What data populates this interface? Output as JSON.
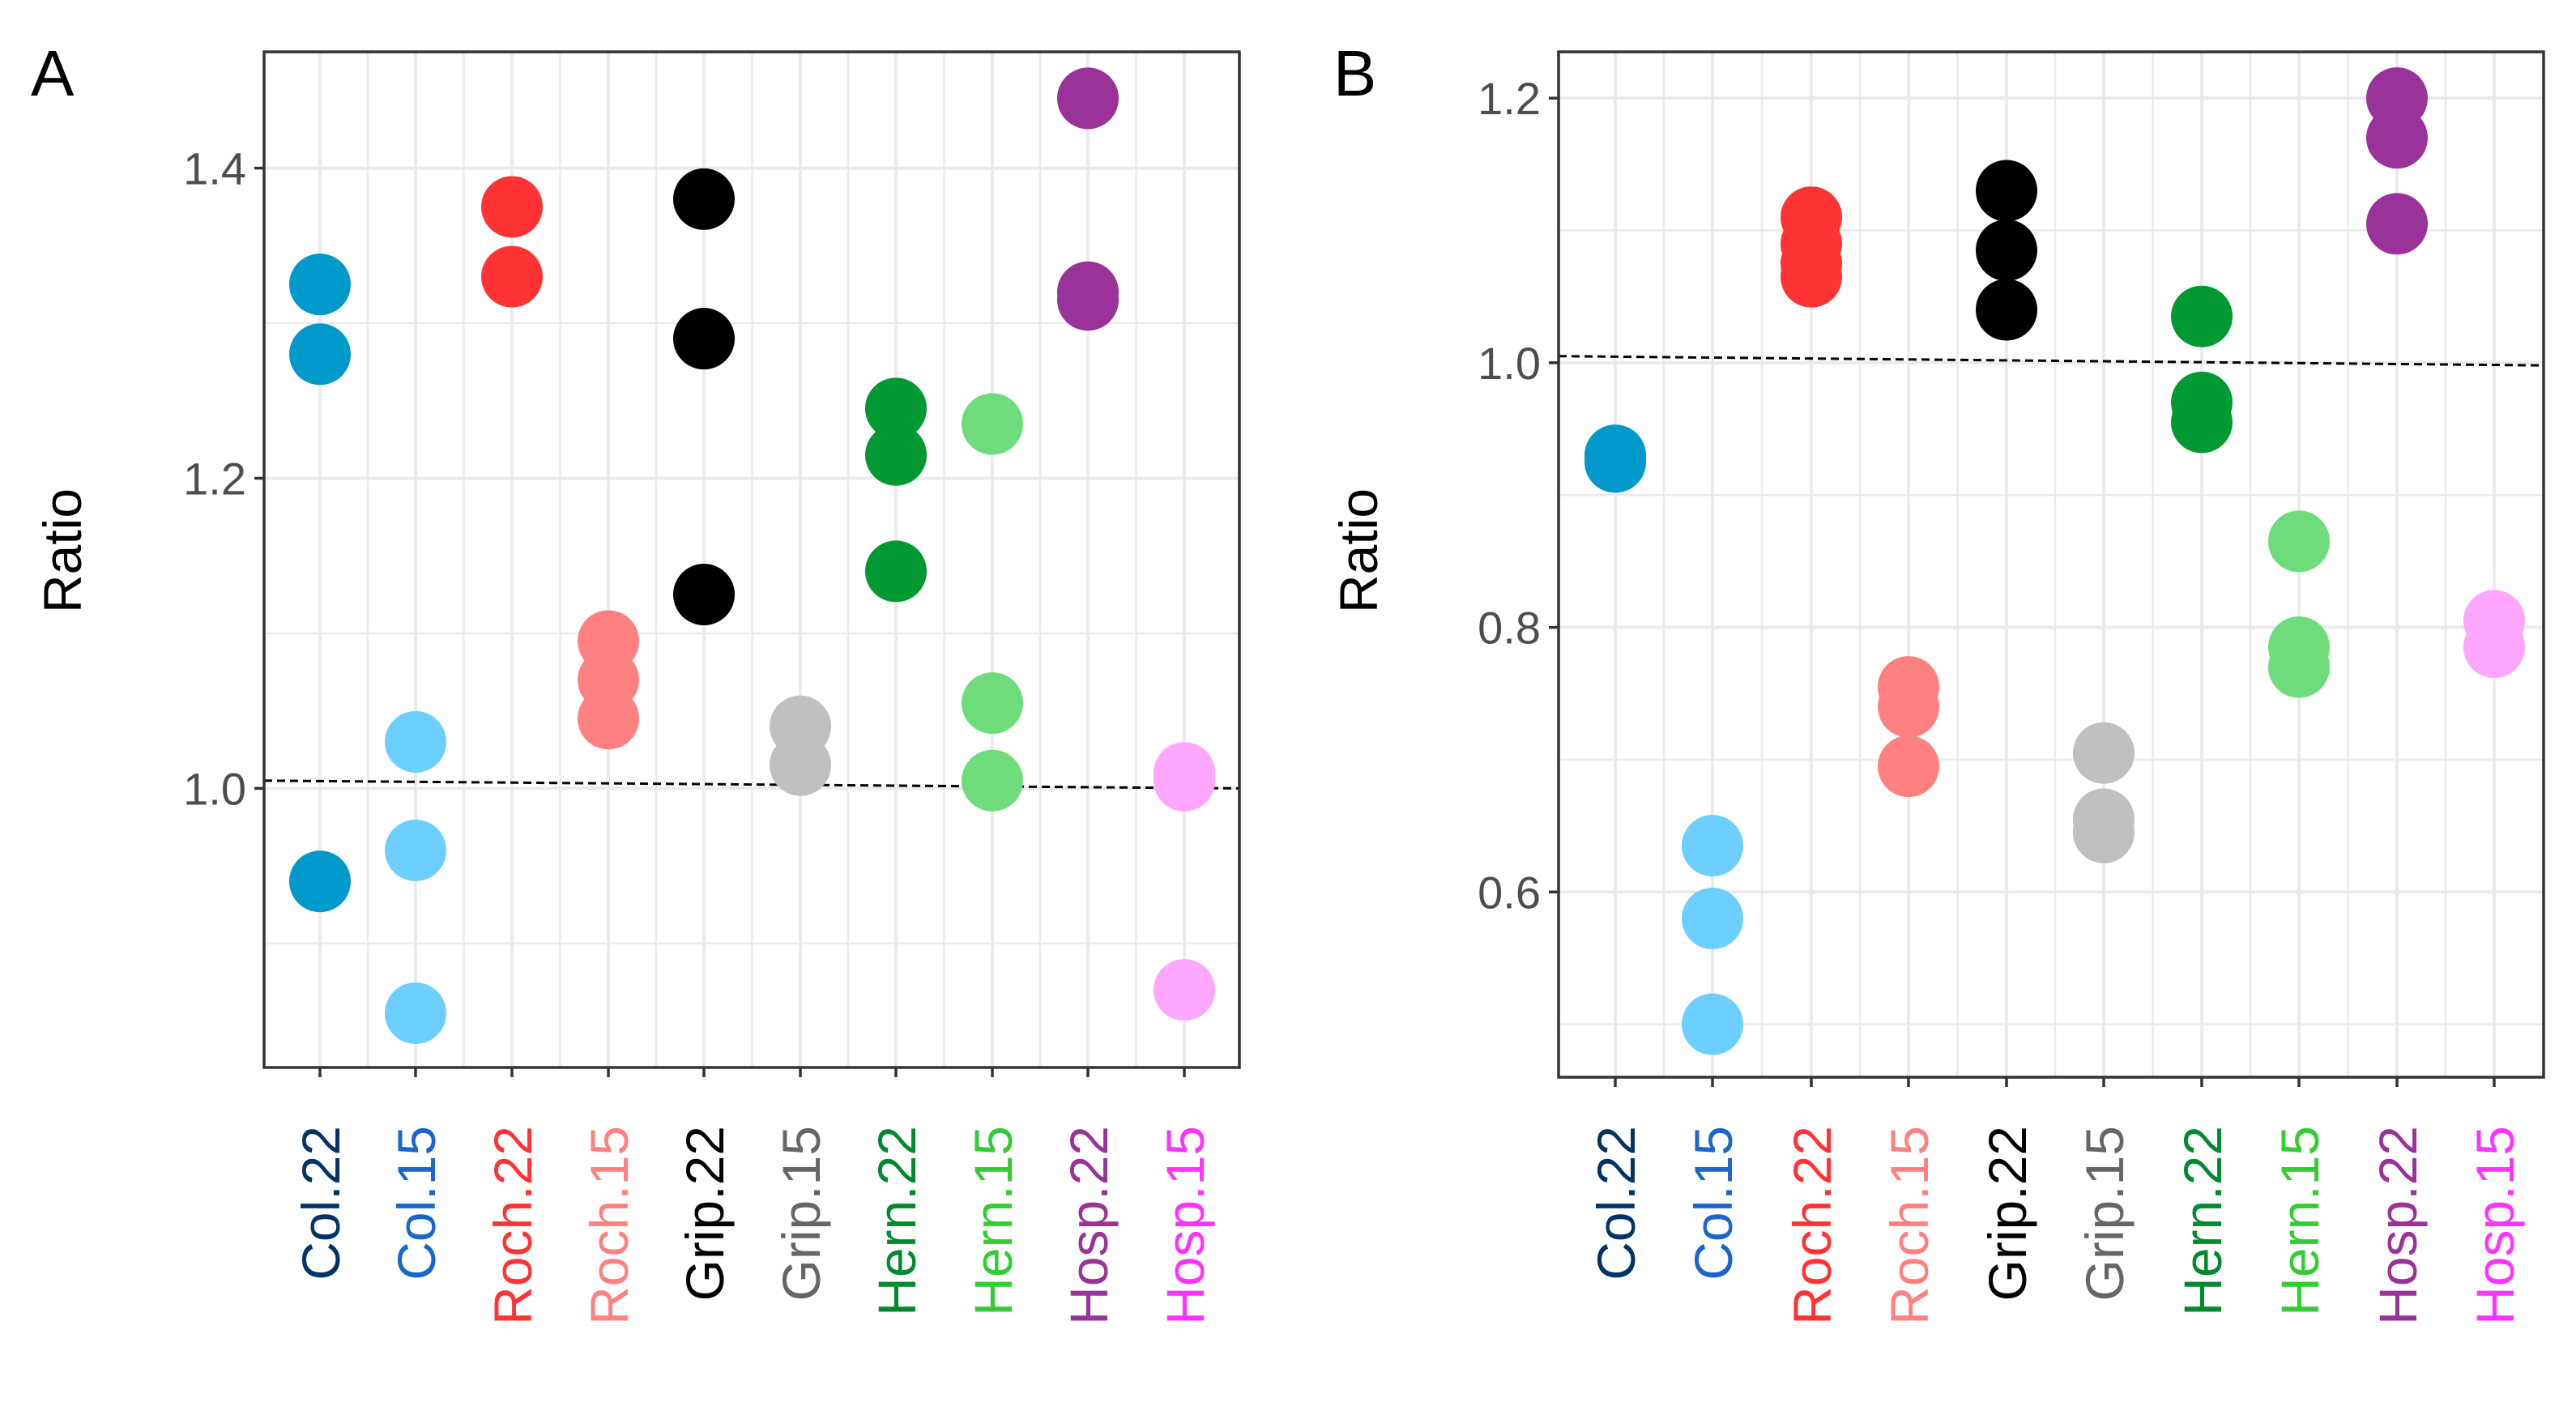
{
  "chart_data": [
    {
      "type": "scatter",
      "panel": "A",
      "title": "",
      "xlabel": "",
      "ylabel": "Ratio",
      "ylim": [
        0.82,
        1.475
      ],
      "yticks": [
        1.0,
        1.2,
        1.4
      ],
      "ytick_labels": [
        "1.0",
        "1.2",
        "1.4"
      ],
      "reference_line": {
        "x0_index": 0,
        "y0": 1.005,
        "x1_index": 9,
        "y1": 1.0
      },
      "categories": [
        {
          "label": "Col.22",
          "label_color": "#003366",
          "point_color": "#0099cc",
          "values": [
            1.325,
            1.28,
            0.94
          ]
        },
        {
          "label": "Col.15",
          "label_color": "#1a66cc",
          "point_color": "#6dcfff",
          "values": [
            1.03,
            0.96,
            0.855
          ]
        },
        {
          "label": "Roch.22",
          "label_color": "#ff3333",
          "point_color": "#ff3333",
          "values": [
            1.375,
            1.33
          ]
        },
        {
          "label": "Roch.15",
          "label_color": "#ff8080",
          "point_color": "#ff8080",
          "values": [
            1.095,
            1.07,
            1.045
          ]
        },
        {
          "label": "Grip.22",
          "label_color": "#000000",
          "point_color": "#000000",
          "values": [
            1.38,
            1.29,
            1.125
          ]
        },
        {
          "label": "Grip.15",
          "label_color": "#666666",
          "point_color": "#c0c0c0",
          "values": [
            1.04,
            1.015
          ]
        },
        {
          "label": "Hern.22",
          "label_color": "#008a2e",
          "point_color": "#009933",
          "values": [
            1.245,
            1.215,
            1.14
          ]
        },
        {
          "label": "Hern.15",
          "label_color": "#33cc33",
          "point_color": "#6fdc7c",
          "values": [
            1.235,
            1.055,
            1.005
          ]
        },
        {
          "label": "Hosp.22",
          "label_color": "#993399",
          "point_color": "#993399",
          "values": [
            1.445,
            1.32,
            1.315
          ]
        },
        {
          "label": "Hosp.15",
          "label_color": "#ff33ff",
          "point_color": "#ffa6ff",
          "values": [
            1.01,
            1.005,
            0.87
          ]
        }
      ]
    },
    {
      "type": "scatter",
      "panel": "B",
      "title": "",
      "xlabel": "",
      "ylabel": "Ratio",
      "ylim": [
        0.46,
        1.235
      ],
      "yticks": [
        0.6,
        0.8,
        1.0,
        1.2
      ],
      "ytick_labels": [
        "0.6",
        "0.8",
        "1.0",
        "1.2"
      ],
      "reference_line": {
        "x0_index": 0,
        "y0": 1.005,
        "x1_index": 9,
        "y1": 0.998
      },
      "categories": [
        {
          "label": "Col.22",
          "label_color": "#003366",
          "point_color": "#0099cc",
          "values": [
            0.93,
            0.925
          ]
        },
        {
          "label": "Col.15",
          "label_color": "#1a66cc",
          "point_color": "#6dcfff",
          "values": [
            0.635,
            0.58,
            0.5
          ]
        },
        {
          "label": "Roch.22",
          "label_color": "#ff3333",
          "point_color": "#ff3333",
          "values": [
            1.11,
            1.09,
            1.075,
            1.065
          ]
        },
        {
          "label": "Roch.15",
          "label_color": "#ff8080",
          "point_color": "#ff8080",
          "values": [
            0.755,
            0.74,
            0.695
          ]
        },
        {
          "label": "Grip.22",
          "label_color": "#000000",
          "point_color": "#000000",
          "values": [
            1.13,
            1.085,
            1.04
          ]
        },
        {
          "label": "Grip.15",
          "label_color": "#666666",
          "point_color": "#c0c0c0",
          "values": [
            0.705,
            0.655,
            0.645
          ]
        },
        {
          "label": "Hern.22",
          "label_color": "#008a2e",
          "point_color": "#009933",
          "values": [
            1.035,
            0.97,
            0.955
          ]
        },
        {
          "label": "Hern.15",
          "label_color": "#33cc33",
          "point_color": "#6fdc7c",
          "values": [
            0.865,
            0.785,
            0.77
          ]
        },
        {
          "label": "Hosp.22",
          "label_color": "#993399",
          "point_color": "#993399",
          "values": [
            1.2,
            1.17,
            1.105
          ]
        },
        {
          "label": "Hosp.15",
          "label_color": "#ff33ff",
          "point_color": "#ffa6ff",
          "values": [
            0.805,
            0.785
          ]
        }
      ]
    }
  ]
}
